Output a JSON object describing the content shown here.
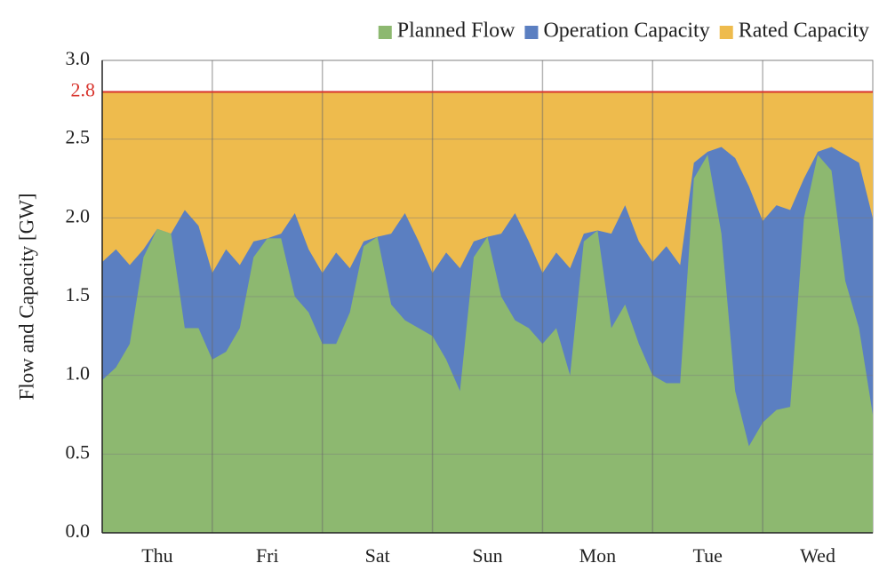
{
  "chart_data": {
    "type": "area",
    "y_label": "Flow and Capacity [GW]",
    "x": [
      0,
      3,
      6,
      9,
      12,
      15,
      18,
      21,
      24,
      27,
      30,
      33,
      36,
      39,
      42,
      45,
      48,
      51,
      54,
      57,
      60,
      63,
      66,
      69,
      72,
      75,
      78,
      81,
      84,
      87,
      90,
      93,
      96,
      99,
      102,
      105,
      108,
      111,
      114,
      117,
      120,
      123,
      126,
      129,
      132,
      135,
      138,
      141,
      144,
      147,
      150,
      153,
      156,
      159,
      162,
      165,
      168
    ],
    "xlim": [
      0,
      168
    ],
    "xticks": [
      {
        "value": 12,
        "label": "Thu"
      },
      {
        "value": 36,
        "label": "Fri"
      },
      {
        "value": 60,
        "label": "Sat"
      },
      {
        "value": 84,
        "label": "Sun"
      },
      {
        "value": 108,
        "label": "Mon"
      },
      {
        "value": 132,
        "label": "Tue"
      },
      {
        "value": 156,
        "label": "Wed"
      }
    ],
    "ylim": [
      0,
      3
    ],
    "yticks": [
      {
        "value": 0,
        "label": "0.0"
      },
      {
        "value": 0.5,
        "label": "0.5"
      },
      {
        "value": 1,
        "label": "1.0"
      },
      {
        "value": 1.5,
        "label": "1.5"
      },
      {
        "value": 2,
        "label": "2.0"
      },
      {
        "value": 2.5,
        "label": "2.5"
      },
      {
        "value": 3,
        "label": "3.0"
      }
    ],
    "grid": true,
    "legend": "top-right",
    "reference_line": {
      "value": 2.8,
      "color": "#d8332c"
    },
    "series": [
      {
        "name": "Rated Capacity",
        "color": "#eebb4d",
        "values": [
          2.8,
          2.8,
          2.8,
          2.8,
          2.8,
          2.8,
          2.8,
          2.8,
          2.8,
          2.8,
          2.8,
          2.8,
          2.8,
          2.8,
          2.8,
          2.8,
          2.8,
          2.8,
          2.8,
          2.8,
          2.8,
          2.8,
          2.8,
          2.8,
          2.8,
          2.8,
          2.8,
          2.8,
          2.8,
          2.8,
          2.8,
          2.8,
          2.8,
          2.8,
          2.8,
          2.8,
          2.8,
          2.8,
          2.8,
          2.8,
          2.8,
          2.8,
          2.8,
          2.8,
          2.8,
          2.8,
          2.8,
          2.8,
          2.8,
          2.8,
          2.8,
          2.8,
          2.8,
          2.8,
          2.8,
          2.8,
          2.8
        ]
      },
      {
        "name": "Operation Capacity",
        "color": "#5b7fc1",
        "values": [
          1.72,
          1.8,
          1.7,
          1.8,
          1.93,
          1.9,
          2.05,
          1.95,
          1.65,
          1.8,
          1.7,
          1.85,
          1.87,
          1.9,
          2.03,
          1.8,
          1.65,
          1.78,
          1.68,
          1.85,
          1.88,
          1.9,
          2.03,
          1.85,
          1.65,
          1.78,
          1.68,
          1.85,
          1.88,
          1.9,
          2.03,
          1.85,
          1.65,
          1.78,
          1.68,
          1.9,
          1.92,
          1.9,
          2.08,
          1.85,
          1.72,
          1.82,
          1.7,
          2.35,
          2.42,
          2.45,
          2.38,
          2.2,
          1.98,
          2.08,
          2.05,
          2.25,
          2.42,
          2.45,
          2.4,
          2.35,
          2.0
        ]
      },
      {
        "name": "Planned Flow",
        "color": "#8db870",
        "values": [
          0.97,
          1.05,
          1.2,
          1.75,
          1.93,
          1.9,
          1.3,
          1.3,
          1.1,
          1.15,
          1.3,
          1.75,
          1.87,
          1.87,
          1.5,
          1.4,
          1.2,
          1.2,
          1.4,
          1.82,
          1.88,
          1.45,
          1.35,
          1.3,
          1.25,
          1.1,
          0.9,
          1.75,
          1.88,
          1.5,
          1.35,
          1.3,
          1.2,
          1.3,
          1.0,
          1.85,
          1.92,
          1.3,
          1.45,
          1.2,
          1.0,
          0.95,
          0.95,
          2.25,
          2.4,
          1.9,
          0.9,
          0.55,
          0.7,
          0.78,
          0.8,
          2.0,
          2.4,
          2.3,
          1.6,
          1.3,
          0.75
        ]
      }
    ]
  }
}
